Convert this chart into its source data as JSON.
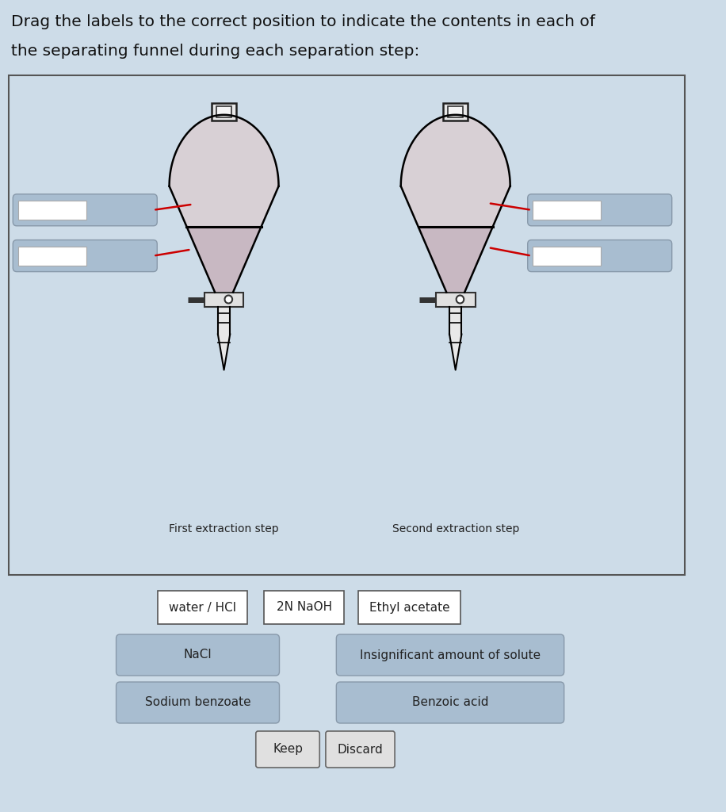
{
  "title_line1": "Drag the labels to the correct position to indicate the contents in each of",
  "title_line2": "the separating funnel during each separation step:",
  "bg_color": "#cddce8",
  "diagram_bg": "#cddce8",
  "border_color": "#555555",
  "funnel1_label": "First extraction step",
  "funnel2_label": "Second extraction step",
  "labels_row1": [
    "water / HCl",
    "2N NaOH",
    "Ethyl acetate"
  ],
  "labels_row2": [
    "NaCl",
    "Insignificant amount of solute"
  ],
  "labels_row3": [
    "Sodium benzoate",
    "Benzoic acid"
  ],
  "labels_row4": [
    "Keep",
    "Discard"
  ],
  "funnel_upper_fill": "#d8d0d5",
  "funnel_lower_fill": "#c8b8c2",
  "slot_blue": "#a8bdd0",
  "slot_white": "#ffffff",
  "box_label_blue": "#a8bdd0",
  "red_line": "#cc0000"
}
